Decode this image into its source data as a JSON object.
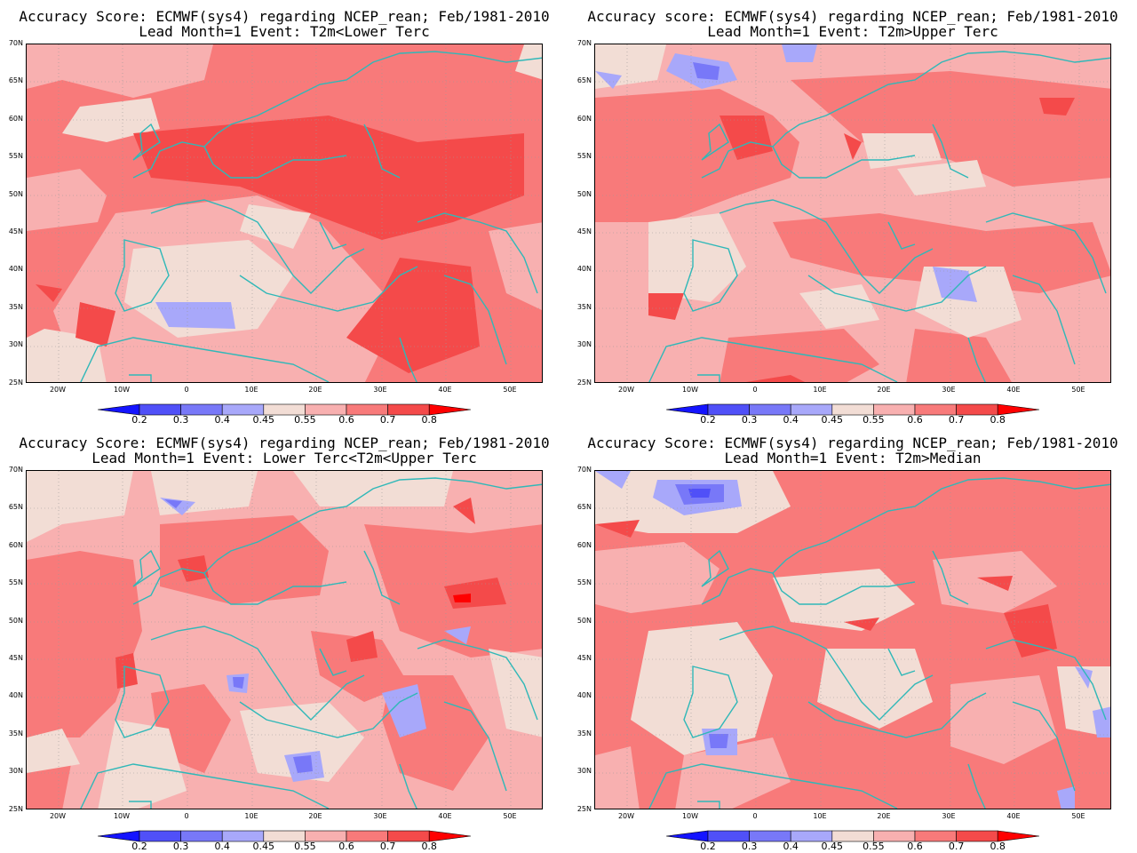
{
  "panels": [
    {
      "line1": "Accuracy Score: ECMWF(sys4) regarding NCEP_rean; Feb/1981-2010",
      "line2": "Lead Month=1 Event: T2m<Lower Terc"
    },
    {
      "line1": "Accuracy score: ECMWF(sys4) regarding NCEP_rean; Feb/1981-2010",
      "line2": "Lead Month=1 Event: T2m>Upper Terc"
    },
    {
      "line1": "Accuracy Score: ECMWF(sys4) regarding NCEP_rean; Feb/1981-2010",
      "line2": "Lead Month=1 Event: Lower Terc<T2m<Upper Terc"
    },
    {
      "line1": "Accuracy Score: ECMWF(sys4) regarding NCEP_rean; Feb/1981-2010",
      "line2": "Lead Month=1 Event: T2m>Median"
    }
  ],
  "lat_labels": [
    "70N",
    "65N",
    "60N",
    "55N",
    "50N",
    "45N",
    "40N",
    "35N",
    "30N",
    "25N"
  ],
  "lon_labels": [
    "20W",
    "10W",
    "0",
    "10E",
    "20E",
    "30E",
    "40E",
    "50E"
  ],
  "colorbar": {
    "labels": [
      "0.2",
      "0.3",
      "0.4",
      "0.45",
      "0.55",
      "0.6",
      "0.7",
      "0.8"
    ],
    "colors": [
      "#1414ff",
      "#5050f8",
      "#7878f8",
      "#a8a8fa",
      "#f2ddd5",
      "#f8b0b0",
      "#f87a7a",
      "#f44a4a",
      "#ff0000"
    ]
  },
  "map_colors": {
    "very_high": "#f44a4a",
    "high": "#f87a7a",
    "mid": "#f8b0b0",
    "near": "#f2ddd5",
    "low": "#a8a8fa",
    "lower": "#7878f8",
    "lowest": "#5050f8",
    "coast": "#30b8b8",
    "grid": "#999999"
  }
}
